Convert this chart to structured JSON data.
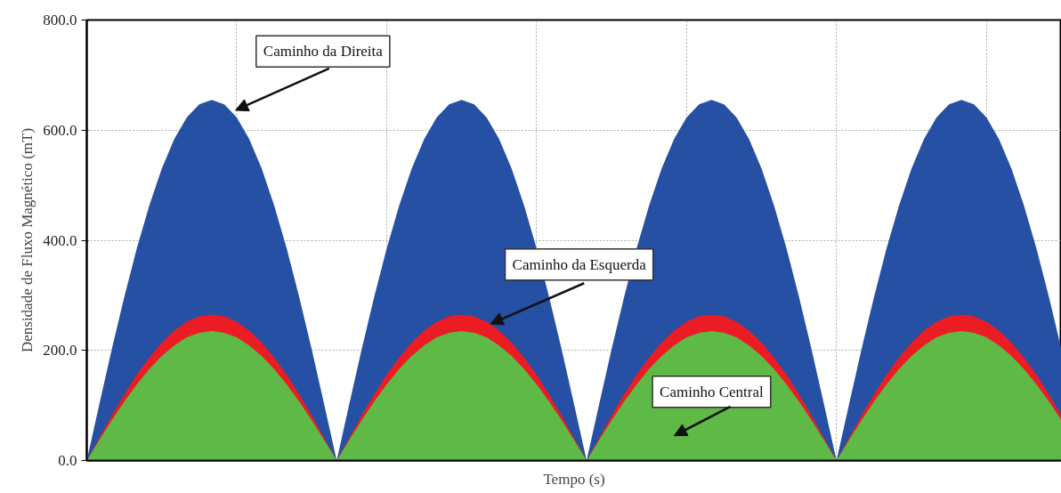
{
  "chart_data": {
    "type": "area",
    "xlabel": "Tempo (s)",
    "ylabel": "Densidade de Fluxo Magnético (mT)",
    "categories": [
      null,
      null,
      null,
      null,
      null,
      null,
      null,
      null,
      null,
      null,
      null,
      null,
      null,
      null,
      null,
      null,
      null,
      null,
      null,
      null,
      null,
      null,
      null,
      null,
      null,
      null,
      null,
      null,
      null,
      null,
      null,
      null,
      null,
      null,
      null,
      null,
      null,
      null,
      null,
      null,
      null,
      null,
      null,
      null,
      null,
      null,
      null,
      null,
      null,
      null,
      null,
      null,
      null,
      null,
      null,
      null,
      null,
      null,
      null,
      null,
      null,
      null,
      null,
      null,
      null,
      null,
      null,
      null,
      null,
      null,
      null,
      null,
      null,
      null,
      null,
      null,
      null,
      null,
      null
    ],
    "series": [
      {
        "name": "Caminho da Direita",
        "color": "#2650a3",
        "values": [
          0,
          102,
          202,
          297,
          385,
          463,
          530,
          584,
          623,
          647,
          655,
          647,
          623,
          584,
          530,
          463,
          385,
          297,
          202,
          102,
          0,
          102,
          202,
          297,
          385,
          463,
          530,
          584,
          623,
          647,
          655,
          647,
          623,
          584,
          530,
          463,
          385,
          297,
          202,
          102,
          0,
          102,
          202,
          297,
          385,
          463,
          530,
          584,
          623,
          647,
          655,
          647,
          623,
          584,
          530,
          463,
          385,
          297,
          202,
          102,
          0,
          102,
          202,
          297,
          385,
          463,
          530,
          584,
          623,
          647,
          655,
          647,
          623,
          584,
          530,
          463,
          385,
          297,
          202
        ]
      },
      {
        "name": "Caminho da Esquerda",
        "color": "#ec1c24",
        "values": [
          0,
          41,
          82,
          120,
          156,
          187,
          214,
          236,
          252,
          262,
          265,
          262,
          252,
          236,
          214,
          187,
          156,
          120,
          82,
          41,
          0,
          41,
          82,
          120,
          156,
          187,
          214,
          236,
          252,
          262,
          265,
          262,
          252,
          236,
          214,
          187,
          156,
          120,
          82,
          41,
          0,
          41,
          82,
          120,
          156,
          187,
          214,
          236,
          252,
          262,
          265,
          262,
          252,
          236,
          214,
          187,
          156,
          120,
          82,
          41,
          0,
          41,
          82,
          120,
          156,
          187,
          214,
          236,
          252,
          262,
          265,
          262,
          252,
          236,
          214,
          187,
          156,
          120,
          82
        ]
      },
      {
        "name": "Caminho Central",
        "color": "#5fb946",
        "values": [
          0,
          37,
          73,
          107,
          138,
          166,
          190,
          209,
          224,
          232,
          235,
          232,
          224,
          209,
          190,
          166,
          138,
          107,
          73,
          37,
          0,
          37,
          73,
          107,
          138,
          166,
          190,
          209,
          224,
          232,
          235,
          232,
          224,
          209,
          190,
          166,
          138,
          107,
          73,
          37,
          0,
          37,
          73,
          107,
          138,
          166,
          190,
          209,
          224,
          232,
          235,
          232,
          224,
          209,
          190,
          166,
          138,
          107,
          73,
          37,
          0,
          37,
          73,
          107,
          138,
          166,
          190,
          209,
          224,
          232,
          235,
          232,
          224,
          209,
          190,
          166,
          138,
          107,
          73
        ]
      }
    ],
    "ylim": [
      0,
      800
    ],
    "yticks": [
      {
        "value": 0,
        "label": "0.0"
      },
      {
        "value": 200,
        "label": "200.0"
      },
      {
        "value": 400,
        "label": "400.0"
      },
      {
        "value": 600,
        "label": "600.0"
      },
      {
        "value": 800,
        "label": "800.0"
      }
    ],
    "tick_labels": "y",
    "grid": true
  }
}
